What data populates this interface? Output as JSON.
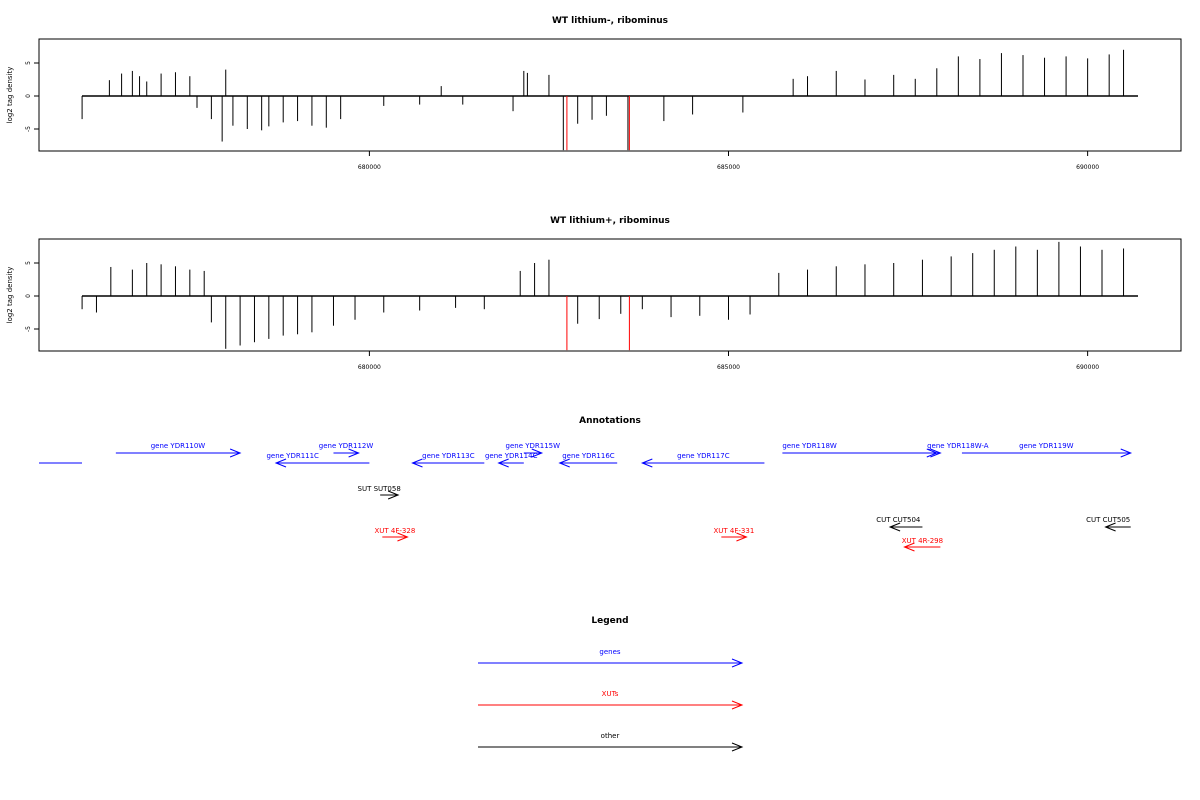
{
  "chart_data": [
    {
      "type": "bar",
      "title": "WT lithium-, ribominus",
      "ylabel": "log2 tag density",
      "xlabel": "",
      "xlim": [
        675400,
        691300
      ],
      "ylim": [
        -8.2,
        8.2
      ],
      "x_ticks": [
        680000,
        685000,
        690000
      ],
      "y_ticks": [
        -5,
        0,
        5
      ],
      "grid": false,
      "series": [
        {
          "color": "#000000",
          "x": [
            676000,
            676380,
            676550,
            676700,
            676800,
            676900,
            677100,
            677300,
            677500,
            677600,
            677800,
            677950,
            678000,
            678100,
            678300,
            678500,
            678600,
            678800,
            679000,
            679200,
            679400,
            679600,
            680200,
            680700,
            681000,
            681300,
            682000,
            682150,
            682200,
            682500,
            682700,
            682900,
            683100,
            683300,
            683600,
            684100,
            684500,
            685200,
            685900,
            686100,
            686500,
            686900,
            687300,
            687600,
            687900,
            688200,
            688500,
            688800,
            689100,
            689400,
            689700,
            690000,
            690300,
            690500
          ],
          "values": [
            -3.5,
            2.4,
            3.4,
            3.8,
            3.0,
            2.2,
            3.4,
            3.6,
            3.0,
            -1.8,
            -3.5,
            -6.9,
            4.0,
            -4.5,
            -5.0,
            -5.2,
            -4.6,
            -4.0,
            -3.8,
            -4.5,
            -4.8,
            -3.5,
            -1.5,
            -1.3,
            1.5,
            -1.3,
            -2.3,
            3.8,
            3.5,
            3.2,
            -8.2,
            -4.2,
            -3.6,
            -3.0,
            -8.2,
            -3.8,
            -2.8,
            -2.5,
            2.6,
            3.0,
            3.8,
            2.5,
            3.2,
            2.6,
            4.2,
            6.0,
            5.6,
            6.5,
            6.2,
            5.8,
            6.0,
            5.7,
            6.3,
            7.0
          ]
        },
        {
          "color": "#ff0000",
          "x": [
            682750,
            683620
          ],
          "values": [
            -8.2,
            -8.2
          ]
        }
      ]
    },
    {
      "type": "bar",
      "title": "WT lithium+, ribominus",
      "ylabel": "log2 tag density",
      "xlabel": "",
      "xlim": [
        675400,
        691300
      ],
      "ylim": [
        -8.2,
        8.2
      ],
      "x_ticks": [
        680000,
        685000,
        690000
      ],
      "y_ticks": [
        -5,
        0,
        5
      ],
      "grid": false,
      "series": [
        {
          "color": "#000000",
          "x": [
            676000,
            676200,
            676400,
            676700,
            676900,
            677100,
            677300,
            677500,
            677700,
            677800,
            678000,
            678200,
            678400,
            678600,
            678800,
            679000,
            679200,
            679500,
            679800,
            680200,
            680700,
            681200,
            681600,
            682100,
            682300,
            682500,
            682900,
            683200,
            683500,
            683800,
            684200,
            684600,
            685000,
            685300,
            685700,
            686100,
            686500,
            686900,
            687300,
            687700,
            688100,
            688400,
            688700,
            689000,
            689300,
            689600,
            689900,
            690200,
            690500
          ],
          "values": [
            -2.0,
            -2.5,
            4.4,
            4.0,
            5.0,
            4.8,
            4.5,
            4.0,
            3.8,
            -4.0,
            -8.0,
            -7.5,
            -7.0,
            -6.5,
            -6.0,
            -5.8,
            -5.5,
            -4.5,
            -3.6,
            -2.5,
            -2.2,
            -1.8,
            -2.0,
            3.8,
            5.0,
            5.5,
            -4.2,
            -3.5,
            -2.7,
            -2.0,
            -3.2,
            -3.0,
            -3.6,
            -2.8,
            3.5,
            4.0,
            4.5,
            4.8,
            5.0,
            5.5,
            6.0,
            6.5,
            7.0,
            7.5,
            7.0,
            8.2,
            7.5,
            7.0,
            7.2
          ]
        },
        {
          "color": "#ff0000",
          "x": [
            682750,
            683620
          ],
          "values": [
            -8.2,
            -8.2
          ]
        }
      ]
    }
  ],
  "annotations": {
    "title": "Annotations",
    "colors": {
      "gene": "#0000ff",
      "xut": "#ff0000",
      "other": "#000000"
    },
    "features": [
      {
        "label": "gene YDR110W",
        "kind": "gene",
        "start": 676470,
        "end": 678200,
        "strand": "+"
      },
      {
        "label": "gene YDR111C",
        "kind": "gene",
        "start": 678700,
        "end": 680000,
        "strand": "-"
      },
      {
        "label": "gene YDR112W",
        "kind": "gene",
        "start": 679500,
        "end": 679850,
        "strand": "+"
      },
      {
        "label": "gene YDR113C",
        "kind": "gene",
        "start": 680600,
        "end": 681600,
        "strand": "-"
      },
      {
        "label": "gene YDR114C",
        "kind": "gene",
        "start": 681800,
        "end": 682150,
        "strand": "-"
      },
      {
        "label": "gene YDR115W",
        "kind": "gene",
        "start": 682150,
        "end": 682400,
        "strand": "+"
      },
      {
        "label": "gene YDR116C",
        "kind": "gene",
        "start": 682650,
        "end": 683450,
        "strand": "-"
      },
      {
        "label": "gene YDR117C",
        "kind": "gene",
        "start": 683800,
        "end": 685500,
        "strand": "-"
      },
      {
        "label": "gene YDR118W",
        "kind": "gene",
        "start": 685750,
        "end": 687900,
        "strand": "+"
      },
      {
        "label": "gene YDR118W-A",
        "kind": "gene",
        "start": 687600,
        "end": 687950,
        "strand": "+"
      },
      {
        "label": "gene YDR119W",
        "kind": "gene",
        "start": 688250,
        "end": 690600,
        "strand": "+"
      },
      {
        "label": "SUT SUT058",
        "kind": "other",
        "start": 680150,
        "end": 680400,
        "strand": "+"
      },
      {
        "label": "XUT 4F-328",
        "kind": "xut",
        "start": 680180,
        "end": 680530,
        "strand": "+"
      },
      {
        "label": "XUT 4F-331",
        "kind": "xut",
        "start": 684900,
        "end": 685250,
        "strand": "+"
      },
      {
        "label": "CUT CUT504",
        "kind": "other",
        "start": 687250,
        "end": 687700,
        "strand": "-"
      },
      {
        "label": "XUT 4R-298",
        "kind": "xut",
        "start": 687450,
        "end": 687950,
        "strand": "-"
      },
      {
        "label": "CUT CUT505",
        "kind": "other",
        "start": 690250,
        "end": 690600,
        "strand": "-"
      }
    ]
  },
  "legend": {
    "title": "Legend",
    "items": [
      {
        "label": "genes",
        "kind": "gene"
      },
      {
        "label": "XUTs",
        "kind": "xut"
      },
      {
        "label": "other",
        "kind": "other"
      }
    ]
  }
}
